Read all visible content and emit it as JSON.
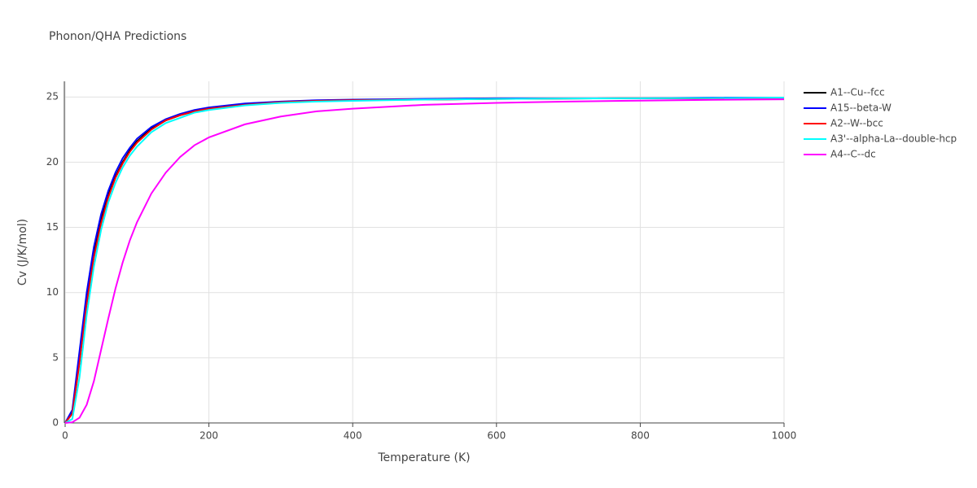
{
  "chart_data": {
    "type": "line",
    "title": "Phonon/QHA Predictions",
    "x_label": "Temperature (K)",
    "y_label": "Cv (J/K/mol)",
    "x": [
      0,
      10,
      20,
      30,
      40,
      50,
      60,
      70,
      80,
      90,
      100,
      120,
      140,
      160,
      180,
      200,
      250,
      300,
      350,
      400,
      500,
      600,
      700,
      800,
      900,
      1000
    ],
    "series": [
      {
        "name": "A1--Cu--fcc",
        "color": "#000000",
        "values": [
          0,
          0.8,
          5.0,
          9.5,
          13.0,
          15.6,
          17.5,
          18.9,
          20.0,
          20.9,
          21.6,
          22.6,
          23.2,
          23.6,
          23.9,
          24.1,
          24.4,
          24.6,
          24.7,
          24.75,
          24.8,
          24.85,
          24.88,
          24.9,
          24.9,
          24.9
        ]
      },
      {
        "name": "A15--beta-W",
        "color": "#0000ff",
        "values": [
          0,
          1.0,
          5.5,
          10,
          13.5,
          16,
          17.8,
          19.2,
          20.3,
          21.1,
          21.8,
          22.7,
          23.3,
          23.7,
          24.0,
          24.2,
          24.5,
          24.65,
          24.75,
          24.8,
          24.85,
          24.9,
          24.9,
          24.9,
          24.95,
          24.95
        ]
      },
      {
        "name": "A2--W--bcc",
        "color": "#ff0000",
        "values": [
          0,
          0.7,
          4.6,
          9.1,
          12.7,
          15.3,
          17.3,
          18.8,
          19.9,
          20.8,
          21.5,
          22.5,
          23.2,
          23.6,
          23.9,
          24.1,
          24.4,
          24.6,
          24.7,
          24.75,
          24.8,
          24.85,
          24.88,
          24.9,
          24.9,
          24.9
        ]
      },
      {
        "name": "A3'--alpha-La--double-hcp",
        "color": "#00ffff",
        "values": [
          0,
          0.3,
          3.5,
          8.3,
          12.0,
          14.8,
          16.9,
          18.4,
          19.6,
          20.5,
          21.2,
          22.3,
          23.0,
          23.4,
          23.8,
          24.0,
          24.35,
          24.55,
          24.65,
          24.7,
          24.8,
          24.85,
          24.88,
          24.9,
          24.92,
          24.95
        ]
      },
      {
        "name": "A4--C--dc",
        "color": "#ff00ff",
        "values": [
          0,
          0.05,
          0.4,
          1.4,
          3.2,
          5.6,
          8.0,
          10.3,
          12.3,
          14.0,
          15.4,
          17.6,
          19.2,
          20.4,
          21.3,
          21.9,
          22.9,
          23.5,
          23.9,
          24.1,
          24.4,
          24.55,
          24.65,
          24.72,
          24.78,
          24.82
        ]
      }
    ],
    "xlim": [
      0,
      1000
    ],
    "ylim": [
      0,
      26.2
    ],
    "xticks": [
      0,
      200,
      400,
      600,
      800,
      1000
    ],
    "yticks": [
      0,
      5,
      10,
      15,
      20,
      25
    ],
    "grid": true
  }
}
